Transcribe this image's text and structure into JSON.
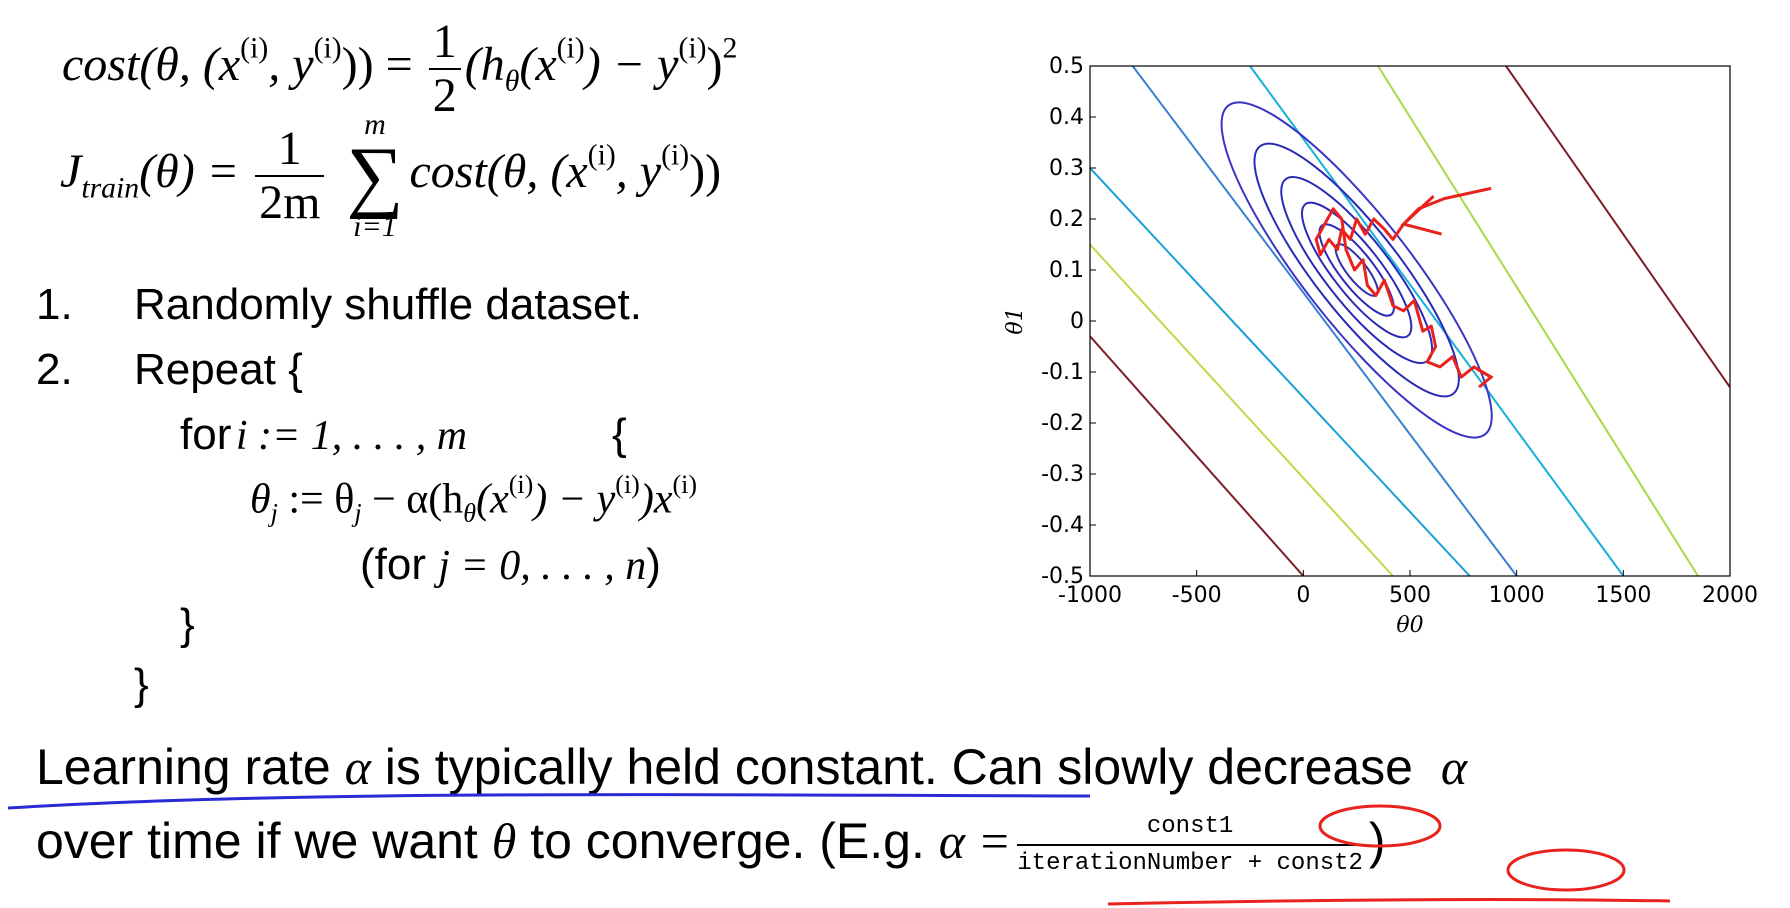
{
  "equations": {
    "cost_lhs": "cost(θ, (x",
    "cost_mid": ", y",
    "cost_close": ")) =",
    "cost_frac_num": "1",
    "cost_frac_den": "2",
    "cost_rhs_open": "(h",
    "cost_rhs_mid1": "(x",
    "cost_rhs_mid2": ") − y",
    "cost_rhs_close": ")",
    "sup_i": "(i)",
    "sub_theta": "θ",
    "sq": "2",
    "j_lhs": "J",
    "j_sub": "train",
    "j_arg": "(θ) =",
    "j_frac_num": "1",
    "j_frac_den": "2m",
    "sum_sym": "∑",
    "sum_top": "m",
    "sum_bottom": "i=1",
    "j_rhs": "cost(θ, (x",
    "j_rhs_mid": ", y",
    "j_rhs_close": "))"
  },
  "steps": {
    "n1": "1.",
    "s1": "Randomly shuffle dataset.",
    "n2": "2.",
    "s2": "Repeat {",
    "for_word": "for",
    "for_range": "i := 1, . . . , m",
    "for_brace": "{",
    "update_lhs": "θ",
    "update_sub": "j",
    "update_mid": " := θ",
    "update_mid2": " − α(h",
    "update_mid3": "(x",
    "update_mid4": ") − y",
    "update_mid5": ")x",
    "for_j_open": "(for ",
    "for_j_math": "j = 0, . . . , n",
    "for_j_close": ")",
    "close_inner": "}",
    "close_outer": "}"
  },
  "bottom": {
    "line1_a": "Learning rate",
    "alpha": "α",
    "line1_b": "is typically held constant. Can slowly decrease",
    "line2_a": "over time if we want",
    "theta": "θ",
    "line2_b": "to converge. (E.g.",
    "alpha_eq": "α =",
    "frac_num": "const1",
    "frac_den": "iterationNumber + const2",
    "close_paren": ")"
  },
  "colors": {
    "annotation_red": "#e8231e",
    "underline_blue": "#2b2bd6",
    "axis": "#000000"
  },
  "chart_data": {
    "type": "contour",
    "xlabel": "θ0",
    "ylabel": "θ1",
    "xlim": [
      -1000,
      2000
    ],
    "ylim": [
      -0.5,
      0.5
    ],
    "xticks": [
      "-1000",
      "-500",
      "0",
      "500",
      "1000",
      "1500",
      "2000"
    ],
    "yticks": [
      "0.5",
      "0.4",
      "0.3",
      "0.2",
      "0.1",
      "0",
      "-0.1",
      "-0.2",
      "-0.3",
      "-0.4",
      "-0.5"
    ],
    "center": [
      250,
      0.1
    ],
    "inner_contours": [
      {
        "a": 130,
        "b": 0.035,
        "color": "#3030b0"
      },
      {
        "a": 230,
        "b": 0.06,
        "color": "#2a2ab8"
      },
      {
        "a": 340,
        "b": 0.085,
        "color": "#2a2ab8"
      },
      {
        "a": 470,
        "b": 0.115,
        "color": "#2a2ab8"
      },
      {
        "a": 640,
        "b": 0.15,
        "color": "#2a2ab8"
      },
      {
        "a": 850,
        "b": 0.19,
        "color": "#3a34c4"
      }
    ],
    "outer_lines": [
      {
        "x0": -1000,
        "y0": 0.3,
        "x1": 780,
        "y1": -0.5,
        "color": "#1aa0d8"
      },
      {
        "x0": -800,
        "y0": 0.5,
        "x1": 1000,
        "y1": -0.5,
        "color": "#3b7fd4"
      },
      {
        "x0": -250,
        "y0": 0.5,
        "x1": 1500,
        "y1": -0.5,
        "color": "#14b0d8"
      },
      {
        "x0": 350,
        "y0": 0.5,
        "x1": 1850,
        "y1": -0.5,
        "color": "#a8d84a"
      },
      {
        "x0": -1000,
        "y0": 0.15,
        "x1": 420,
        "y1": -0.5,
        "color": "#b8dc4a"
      },
      {
        "x0": 950,
        "y0": 0.5,
        "x1": 2000,
        "y1": -0.13,
        "color": "#7a1e2a"
      },
      {
        "x0": -1000,
        "y0": -0.03,
        "x1": 0,
        "y1": -0.5,
        "color": "#7a1e2a"
      }
    ],
    "sgd_path": [
      [
        880,
        0.26
      ],
      [
        660,
        0.24
      ],
      [
        540,
        0.22
      ],
      [
        470,
        0.19
      ],
      [
        420,
        0.16
      ],
      [
        380,
        0.18
      ],
      [
        330,
        0.2
      ],
      [
        290,
        0.17
      ],
      [
        250,
        0.2
      ],
      [
        220,
        0.16
      ],
      [
        180,
        0.18
      ],
      [
        160,
        0.14
      ],
      [
        120,
        0.16
      ],
      [
        80,
        0.13
      ],
      [
        60,
        0.16
      ],
      [
        100,
        0.19
      ],
      [
        140,
        0.22
      ],
      [
        180,
        0.2
      ],
      [
        200,
        0.14
      ],
      [
        240,
        0.1
      ],
      [
        280,
        0.12
      ],
      [
        300,
        0.07
      ],
      [
        340,
        0.05
      ],
      [
        380,
        0.08
      ],
      [
        420,
        0.03
      ],
      [
        470,
        0.02
      ],
      [
        520,
        0.04
      ],
      [
        560,
        -0.02
      ],
      [
        600,
        -0.01
      ],
      [
        620,
        -0.05
      ],
      [
        580,
        -0.08
      ],
      [
        640,
        -0.09
      ],
      [
        700,
        -0.07
      ],
      [
        740,
        -0.11
      ],
      [
        800,
        -0.09
      ],
      [
        880,
        -0.11
      ]
    ],
    "arrow_tip": [
      470,
      0.19
    ]
  }
}
